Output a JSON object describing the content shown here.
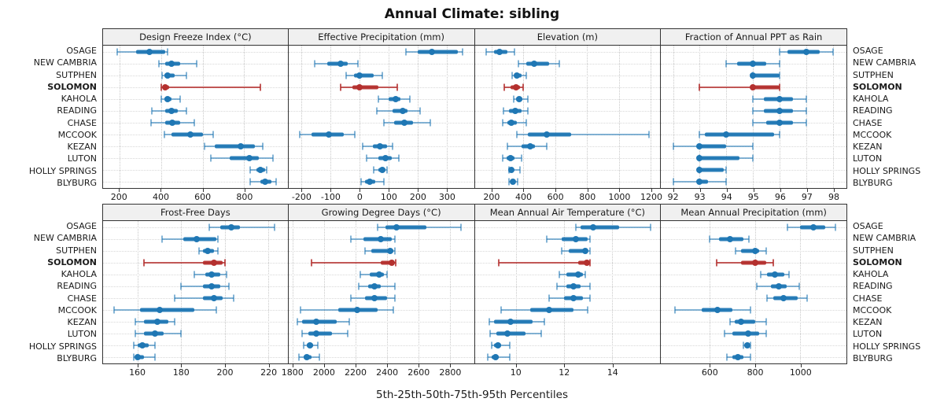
{
  "title": "Annual Climate: sibling",
  "footer": "5th-25th-50th-75th-95th Percentiles",
  "highlighted_location": "SOLOMON",
  "locations": [
    "OSAGE",
    "NEW CAMBRIA",
    "SUTPHEN",
    "SOLOMON",
    "KAHOLA",
    "READING",
    "CHASE",
    "MCCOOK",
    "KEZAN",
    "LUTON",
    "HOLLY SPRINGS",
    "BLYBURG"
  ],
  "colors": {
    "series": "#1F77B4",
    "highlight": "#B4302E",
    "strip_bg": "#f0f0f0",
    "grid": "#cccccc"
  },
  "chart_data": [
    {
      "type": "dotplot-percentiles",
      "title": "Design Freeze Index (°C)",
      "ticks": [
        200,
        400,
        600,
        800
      ],
      "xlim": [
        120,
        1010
      ],
      "series": {
        "OSAGE": [
          190,
          280,
          345,
          420,
          430
        ],
        "NEW CAMBRIA": [
          390,
          420,
          450,
          490,
          570
        ],
        "SUTPHEN": [
          405,
          415,
          430,
          465,
          520
        ],
        "SOLOMON": [
          400,
          410,
          420,
          440,
          880
        ],
        "KAHOLA": [
          400,
          415,
          430,
          450,
          490
        ],
        "READING": [
          355,
          420,
          450,
          480,
          520
        ],
        "CHASE": [
          350,
          420,
          455,
          490,
          560
        ],
        "MCCOOK": [
          415,
          450,
          540,
          600,
          650
        ],
        "KEZAN": [
          610,
          660,
          785,
          850,
          890
        ],
        "LUTON": [
          640,
          730,
          825,
          870,
          940
        ],
        "HOLLY SPRINGS": [
          830,
          860,
          880,
          900,
          910
        ],
        "BLYBURG": [
          830,
          880,
          900,
          930,
          955
        ]
      }
    },
    {
      "type": "dotplot-percentiles",
      "title": "Effective Precipitation (mm)",
      "ticks": [
        -200,
        -100,
        0,
        100,
        200,
        300
      ],
      "xlim": [
        -245,
        395
      ],
      "series": {
        "OSAGE": [
          160,
          200,
          250,
          340,
          355
        ],
        "NEW CAMBRIA": [
          -155,
          -110,
          -65,
          -40,
          -5
        ],
        "SUTPHEN": [
          -45,
          -20,
          0,
          50,
          80
        ],
        "SOLOMON": [
          -65,
          -25,
          0,
          65,
          130
        ],
        "KAHOLA": [
          65,
          100,
          125,
          140,
          175
        ],
        "READING": [
          60,
          115,
          150,
          165,
          210
        ],
        "CHASE": [
          85,
          120,
          155,
          185,
          245
        ],
        "MCCOOK": [
          -205,
          -165,
          -105,
          -55,
          -15
        ],
        "KEZAN": [
          10,
          45,
          70,
          95,
          115
        ],
        "LUTON": [
          25,
          65,
          90,
          110,
          135
        ],
        "HOLLY SPRINGS": [
          50,
          65,
          78,
          90,
          95
        ],
        "BLYBURG": [
          5,
          20,
          35,
          55,
          85
        ]
      }
    },
    {
      "type": "dotplot-percentiles",
      "title": "Elevation (m)",
      "ticks": [
        200,
        400,
        600,
        800,
        1000,
        1200
      ],
      "xlim": [
        95,
        1260
      ],
      "series": {
        "OSAGE": [
          165,
          215,
          250,
          300,
          345
        ],
        "NEW CAMBRIA": [
          370,
          420,
          470,
          560,
          625
        ],
        "SUTPHEN": [
          330,
          345,
          360,
          390,
          420
        ],
        "SOLOMON": [
          280,
          320,
          355,
          380,
          400
        ],
        "KAHOLA": [
          340,
          355,
          375,
          395,
          430
        ],
        "READING": [
          275,
          310,
          350,
          390,
          430
        ],
        "CHASE": [
          270,
          300,
          325,
          360,
          420
        ],
        "MCCOOK": [
          360,
          430,
          545,
          700,
          1190
        ],
        "KEZAN": [
          300,
          390,
          445,
          475,
          545
        ],
        "LUTON": [
          270,
          295,
          320,
          345,
          390
        ],
        "HOLLY SPRINGS": [
          310,
          315,
          325,
          340,
          380
        ],
        "BLYBURG": [
          310,
          325,
          335,
          350,
          365
        ]
      }
    },
    {
      "type": "dotplot-percentiles",
      "title": "Fraction of Annual PPT as Rain",
      "ticks": [
        92,
        93,
        94,
        95,
        96,
        97,
        98
      ],
      "xlim": [
        91.55,
        98.5
      ],
      "series": {
        "OSAGE": [
          96,
          96.3,
          97,
          97.5,
          98
        ],
        "NEW CAMBRIA": [
          94,
          94.4,
          95,
          95.5,
          96
        ],
        "SUTPHEN": [
          95,
          95,
          95,
          96,
          96
        ],
        "SOLOMON": [
          93,
          95,
          95,
          96,
          96
        ],
        "KAHOLA": [
          95,
          95.4,
          96,
          96.5,
          97
        ],
        "READING": [
          95,
          95.4,
          96,
          96.5,
          97
        ],
        "CHASE": [
          95,
          95.5,
          96,
          96.5,
          97
        ],
        "MCCOOK": [
          93,
          93.2,
          94,
          95.8,
          96
        ],
        "KEZAN": [
          92,
          92.9,
          93,
          94,
          95
        ],
        "LUTON": [
          93,
          93,
          93,
          94.5,
          95
        ],
        "HOLLY SPRINGS": [
          93,
          93,
          93,
          93.9,
          94
        ],
        "BLYBURG": [
          92,
          92.9,
          93,
          93.3,
          94
        ]
      }
    },
    {
      "type": "dotplot-percentiles",
      "title": "Frost-Free Days",
      "ticks": [
        160,
        180,
        200,
        220
      ],
      "xlim": [
        144,
        229
      ],
      "series": {
        "OSAGE": [
          193,
          198,
          203,
          207,
          223
        ],
        "NEW CAMBRIA": [
          171,
          181,
          187,
          196,
          197
        ],
        "SUTPHEN": [
          188,
          190,
          192,
          195,
          197
        ],
        "SOLOMON": [
          163,
          190,
          195,
          199,
          200
        ],
        "KAHOLA": [
          186,
          191,
          194,
          198,
          201
        ],
        "READING": [
          180,
          190,
          194,
          198,
          202
        ],
        "CHASE": [
          177,
          190,
          195,
          199,
          204
        ],
        "MCCOOK": [
          149,
          161,
          170,
          186,
          196
        ],
        "KEZAN": [
          159,
          163,
          169,
          174,
          177
        ],
        "LUTON": [
          159,
          163,
          168,
          172,
          180
        ],
        "HOLLY SPRINGS": [
          158,
          160,
          162,
          165,
          168
        ],
        "BLYBURG": [
          158,
          159,
          160,
          163,
          168
        ]
      }
    },
    {
      "type": "dotplot-percentiles",
      "title": "Growing Degree Days (°C)",
      "ticks": [
        1800,
        2000,
        2200,
        2400,
        2600,
        2800
      ],
      "xlim": [
        1775,
        2955
      ],
      "series": {
        "OSAGE": [
          2340,
          2390,
          2460,
          2650,
          2870
        ],
        "NEW CAMBRIA": [
          2170,
          2250,
          2360,
          2430,
          2450
        ],
        "SUTPHEN": [
          2260,
          2300,
          2420,
          2440,
          2450
        ],
        "SOLOMON": [
          1920,
          2360,
          2430,
          2445,
          2455
        ],
        "KAHOLA": [
          2230,
          2290,
          2350,
          2380,
          2400
        ],
        "READING": [
          2220,
          2280,
          2320,
          2360,
          2450
        ],
        "CHASE": [
          2170,
          2260,
          2320,
          2400,
          2450
        ],
        "MCCOOK": [
          1850,
          2090,
          2210,
          2340,
          2440
        ],
        "KEZAN": [
          1830,
          1860,
          1950,
          2080,
          2160
        ],
        "LUTON": [
          1860,
          1900,
          1950,
          2050,
          2150
        ],
        "HOLLY SPRINGS": [
          1870,
          1890,
          1910,
          1930,
          1960
        ],
        "BLYBURG": [
          1840,
          1870,
          1890,
          1920,
          1970
        ]
      }
    },
    {
      "type": "dotplot-percentiles",
      "title": "Mean Annual Air Temperature (°C)",
      "ticks": [
        10,
        12,
        14
      ],
      "xlim": [
        8.3,
        16.0
      ],
      "series": {
        "OSAGE": [
          12.5,
          12.7,
          13.2,
          14.3,
          15.6
        ],
        "NEW CAMBRIA": [
          11.3,
          11.9,
          12.5,
          13.0,
          13.1
        ],
        "SUTPHEN": [
          11.9,
          12.2,
          12.9,
          13.0,
          13.1
        ],
        "SOLOMON": [
          9.3,
          12.6,
          12.95,
          13.0,
          13.1
        ],
        "KAHOLA": [
          11.8,
          12.1,
          12.6,
          12.8,
          12.9
        ],
        "READING": [
          11.7,
          12.1,
          12.4,
          12.7,
          13.1
        ],
        "CHASE": [
          11.4,
          12.0,
          12.4,
          12.8,
          13.1
        ],
        "MCCOOK": [
          9.4,
          10.6,
          11.4,
          12.4,
          13.0
        ],
        "KEZAN": [
          8.9,
          9.1,
          9.8,
          10.7,
          11.2
        ],
        "LUTON": [
          8.95,
          9.2,
          9.65,
          10.4,
          11.05
        ],
        "HOLLY SPRINGS": [
          9.0,
          9.1,
          9.25,
          9.4,
          9.75
        ],
        "BLYBURG": [
          8.85,
          9.0,
          9.15,
          9.3,
          9.75
        ]
      }
    },
    {
      "type": "dotplot-percentiles",
      "title": "Mean Annual Precipitation (mm)",
      "ticks": [
        600,
        800,
        1000
      ],
      "xlim": [
        385,
        1205
      ],
      "series": {
        "OSAGE": [
          945,
          1000,
          1060,
          1110,
          1155
        ],
        "NEW CAMBRIA": [
          600,
          640,
          690,
          750,
          775
        ],
        "SUTPHEN": [
          715,
          740,
          800,
          820,
          850
        ],
        "SOLOMON": [
          630,
          740,
          800,
          850,
          880
        ],
        "KAHOLA": [
          825,
          855,
          890,
          930,
          950
        ],
        "READING": [
          810,
          870,
          905,
          940,
          995
        ],
        "CHASE": [
          855,
          880,
          925,
          990,
          1030
        ],
        "MCCOOK": [
          445,
          565,
          635,
          700,
          780
        ],
        "KEZAN": [
          690,
          710,
          740,
          800,
          850
        ],
        "LUTON": [
          665,
          700,
          770,
          820,
          850
        ],
        "HOLLY SPRINGS": [
          750,
          755,
          765,
          775,
          780
        ],
        "BLYBURG": [
          675,
          700,
          725,
          750,
          780
        ]
      }
    }
  ]
}
